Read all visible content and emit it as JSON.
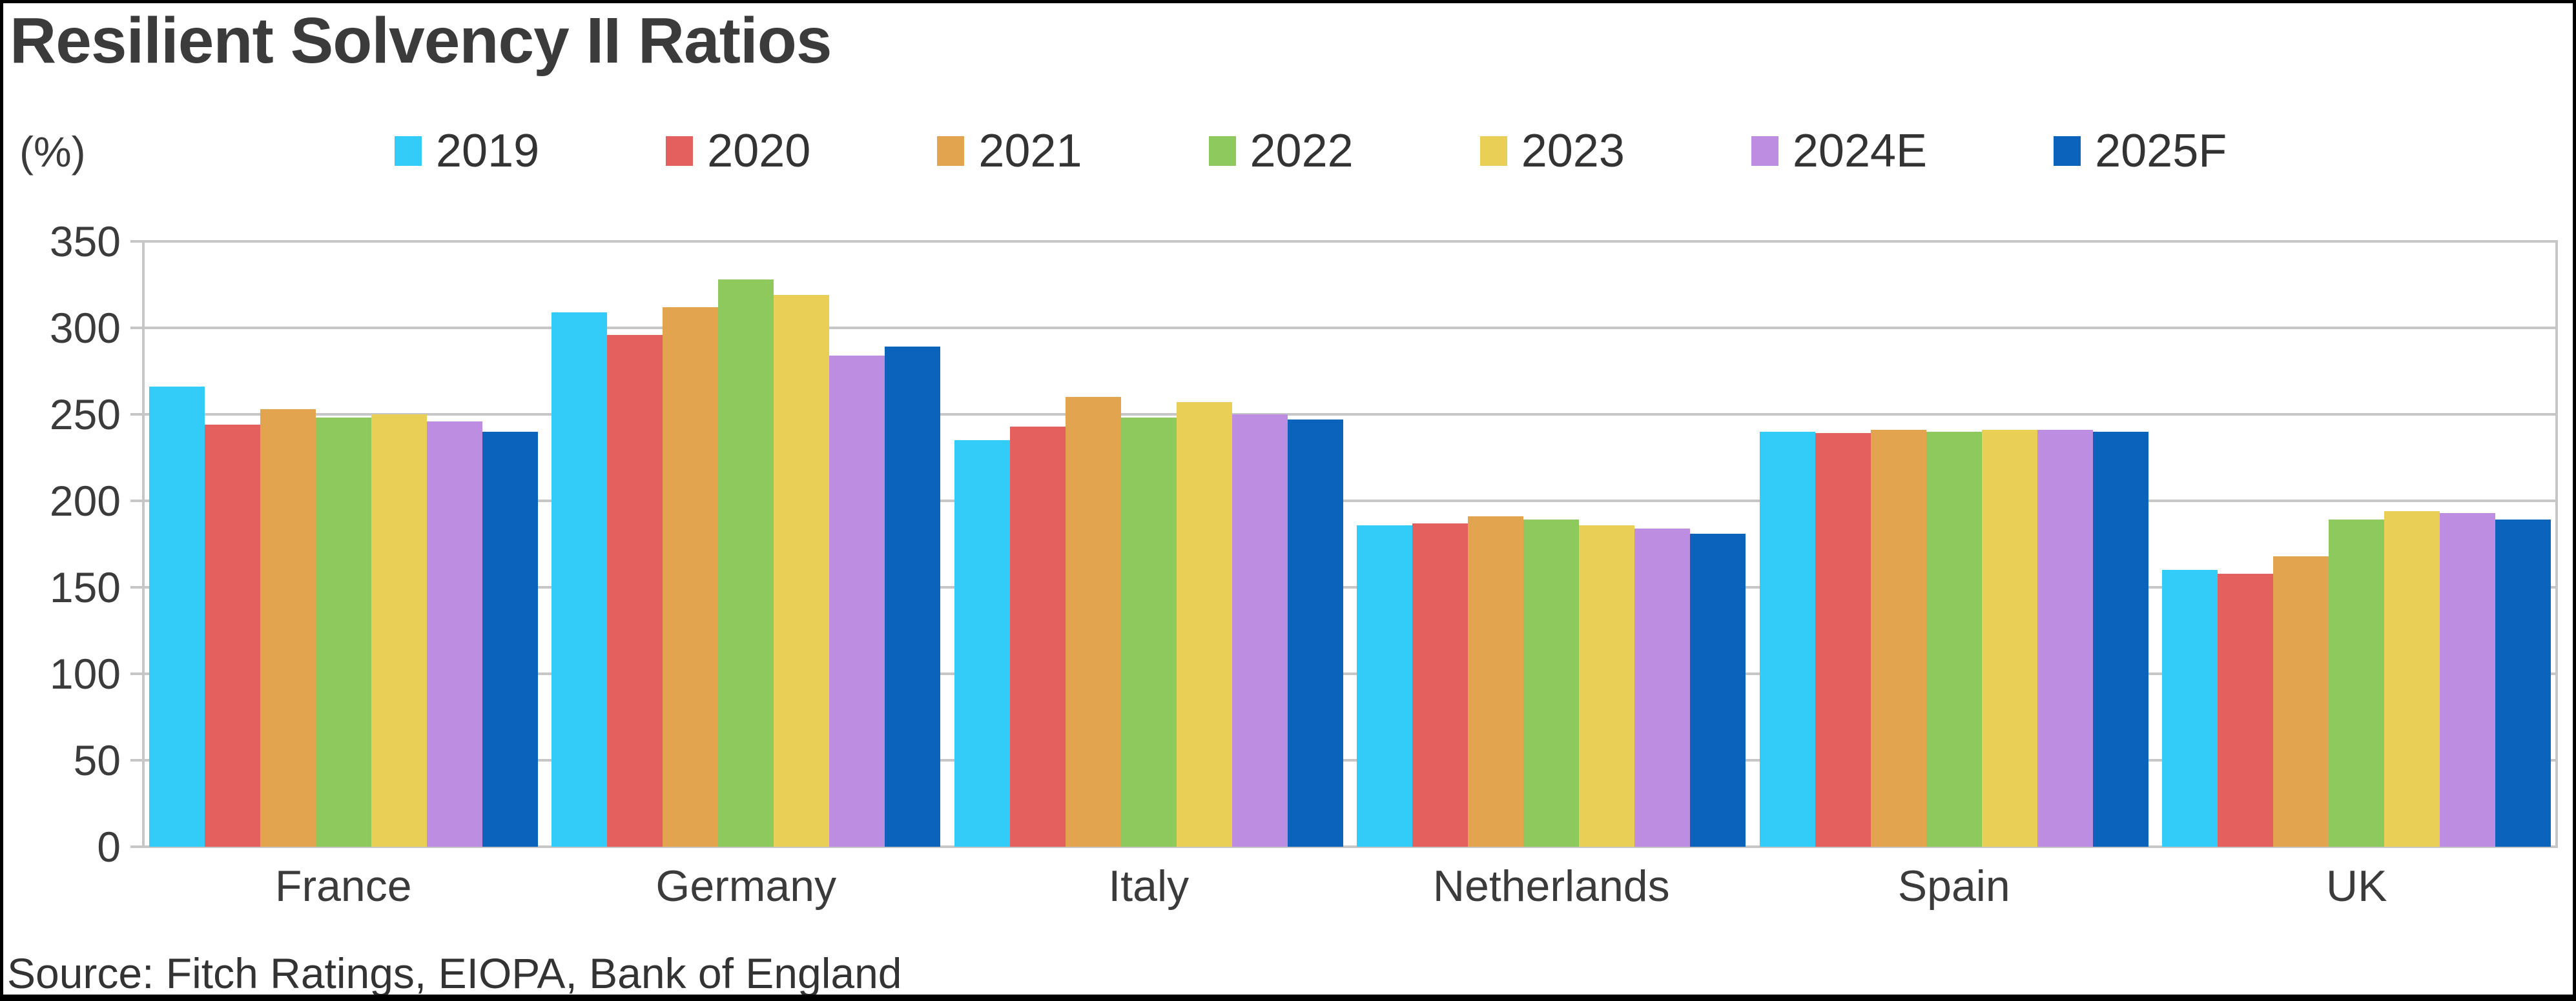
{
  "title": "Resilient Solvency II Ratios",
  "unit_label": "(%)",
  "source": "Source: Fitch Ratings, EIOPA, Bank of England",
  "colors": {
    "grid": "#c6c6c6",
    "frame": "#000000",
    "title_text": "#3b3b3b",
    "axis_text": "#3b3b3b"
  },
  "chart_data": {
    "type": "bar",
    "title": "Resilient Solvency II Ratios",
    "ylabel": "(%)",
    "xlabel": "",
    "grid": true,
    "legend_position": "top",
    "ylim": [
      0,
      350
    ],
    "ytick_step": 50,
    "yticks": [
      0,
      50,
      100,
      150,
      200,
      250,
      300,
      350
    ],
    "categories": [
      "France",
      "Germany",
      "Italy",
      "Netherlands",
      "Spain",
      "UK"
    ],
    "series": [
      {
        "name": "2019",
        "color": "#33cbf8",
        "values": [
          266,
          309,
          235,
          186,
          240,
          160
        ]
      },
      {
        "name": "2020",
        "color": "#e4605e",
        "values": [
          244,
          296,
          243,
          187,
          239,
          158
        ]
      },
      {
        "name": "2021",
        "color": "#e2a44f",
        "values": [
          253,
          312,
          260,
          191,
          241,
          168
        ]
      },
      {
        "name": "2022",
        "color": "#8dc95c",
        "values": [
          248,
          328,
          248,
          189,
          240,
          189
        ]
      },
      {
        "name": "2023",
        "color": "#e9cf55",
        "values": [
          250,
          319,
          257,
          186,
          241,
          194
        ]
      },
      {
        "name": "2024E",
        "color": "#bc8de0",
        "values": [
          246,
          284,
          250,
          184,
          241,
          193
        ]
      },
      {
        "name": "2025F",
        "color": "#0b63bc",
        "values": [
          240,
          289,
          247,
          181,
          240,
          189
        ]
      }
    ]
  }
}
